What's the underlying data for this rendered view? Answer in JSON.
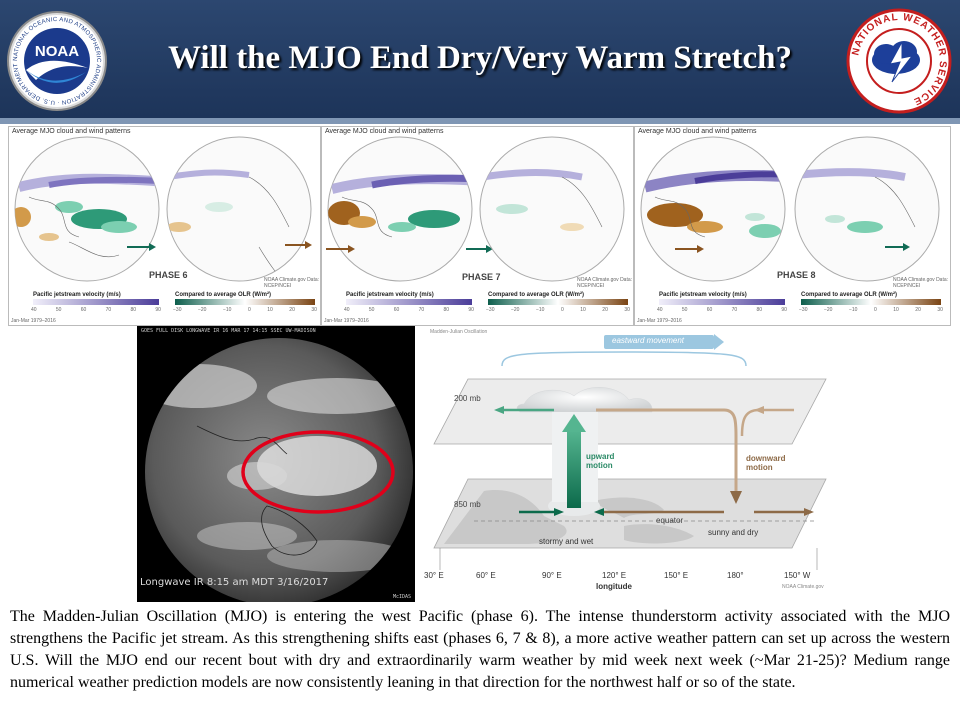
{
  "header": {
    "title": "Will the MJO End Dry/Very Warm Stretch?",
    "noaa_logo_text": "NOAA",
    "noaa_ring_text": "NATIONAL OCEANIC AND ATMOSPHERIC ADMINISTRATION · U.S. DEPARTMENT OF COMMERCE",
    "nws_ring_text": "NATIONAL WEATHER SERVICE"
  },
  "panels": [
    {
      "title": "Average MJO cloud and wind patterns",
      "phase": "PHASE 6",
      "jet_label": "Pacific jetstream velocity (m/s)",
      "jet_ticks": [
        "40",
        "50",
        "60",
        "70",
        "80",
        "90"
      ],
      "olr_label": "Compared to average OLR (W/m²)",
      "olr_ticks": [
        "−30",
        "−20",
        "−10",
        "0",
        "10",
        "20",
        "30"
      ],
      "period": "Jan-Mar 1979–2016",
      "credit": "NOAA Climate.gov Data: NCEP/NCEI"
    },
    {
      "title": "Average MJO cloud and wind patterns",
      "phase": "PHASE 7",
      "jet_label": "Pacific jetstream velocity (m/s)",
      "jet_ticks": [
        "40",
        "50",
        "60",
        "70",
        "80",
        "90"
      ],
      "olr_label": "Compared to average OLR (W/m²)",
      "olr_ticks": [
        "−30",
        "−20",
        "−10",
        "0",
        "10",
        "20",
        "30"
      ],
      "period": "Jan-Mar 1979–2016",
      "credit": "NOAA Climate.gov Data: NCEP/NCEI"
    },
    {
      "title": "Average MJO cloud and wind patterns",
      "phase": "PHASE 8",
      "jet_label": "Pacific jetstream velocity (m/s)",
      "jet_ticks": [
        "40",
        "50",
        "60",
        "70",
        "80",
        "90"
      ],
      "olr_label": "Compared to average OLR (W/m²)",
      "olr_ticks": [
        "−30",
        "−20",
        "−10",
        "0",
        "10",
        "20",
        "30"
      ],
      "period": "Jan-Mar 1979–2016",
      "credit": "NOAA Climate.gov Data: NCEP/NCEI"
    }
  ],
  "satellite": {
    "header": "GOES FULL DISK LONGWAVE IR 16 MAR 17 14:15 SSEC UW-MADISON",
    "caption": "Longwave IR 8:15 am MDT 3/16/2017",
    "footer_right": "McIDAS"
  },
  "diagram": {
    "header": "Madden-Julian Oscillation",
    "credit": "NOAA Climate.gov",
    "eastward": "eastward movement",
    "level_200": "200 mb",
    "level_850": "850 mb",
    "upward_1": "upward",
    "upward_2": "motion",
    "downward_1": "downward",
    "downward_2": "motion",
    "equator": "equator",
    "stormy": "stormy and wet",
    "sunny": "sunny and dry",
    "lon_ticks": [
      "30° E",
      "60° E",
      "90° E",
      "120° E",
      "150° E",
      "180°",
      "150° W"
    ],
    "lon_label": "longitude"
  },
  "body": {
    "paragraph": "The Madden-Julian Oscillation (MJO) is entering the west Pacific (phase 6). The intense thunderstorm activity associated with the MJO strengthens the Pacific jet stream. As this strengthening shifts east (phases 6, 7 & 8), a more active weather pattern can set up across the western U.S. Will the MJO end our recent bout with dry and extraordinarily warm weather by mid week next week (~Mar 21-25)? Medium range numerical weather prediction models are now consistently leaning in that direction for the northwest half or so of the state."
  },
  "colors": {
    "header_bg": "#1c3358",
    "wet_anomaly": "#2e9a78",
    "dry_anomaly": "#a0621e",
    "jet_stream": "#8c84c4",
    "ellipse": "#e0001a"
  }
}
